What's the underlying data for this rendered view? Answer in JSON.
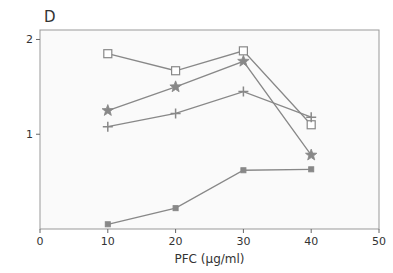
{
  "chart_data": {
    "type": "line",
    "title": "D",
    "xlabel": "PFC (μg/ml)",
    "x": [
      10,
      20,
      30,
      40
    ],
    "xlim": [
      0,
      50
    ],
    "ylim": [
      0,
      2.1
    ],
    "xticks": [
      0,
      10,
      20,
      30,
      40,
      50
    ],
    "yticks": [
      1,
      2
    ],
    "grid": false,
    "series": [
      {
        "color": "#888888",
        "marker": "open-square",
        "values": [
          1.85,
          1.67,
          1.88,
          1.1
        ]
      },
      {
        "color": "#888888",
        "marker": "star",
        "values": [
          1.25,
          1.5,
          1.77,
          0.78
        ]
      },
      {
        "color": "#888888",
        "marker": "plus",
        "values": [
          1.08,
          1.22,
          1.45,
          1.18
        ]
      },
      {
        "color": "#888888",
        "marker": "square",
        "values": [
          0.05,
          0.22,
          0.62,
          0.63
        ]
      }
    ]
  }
}
